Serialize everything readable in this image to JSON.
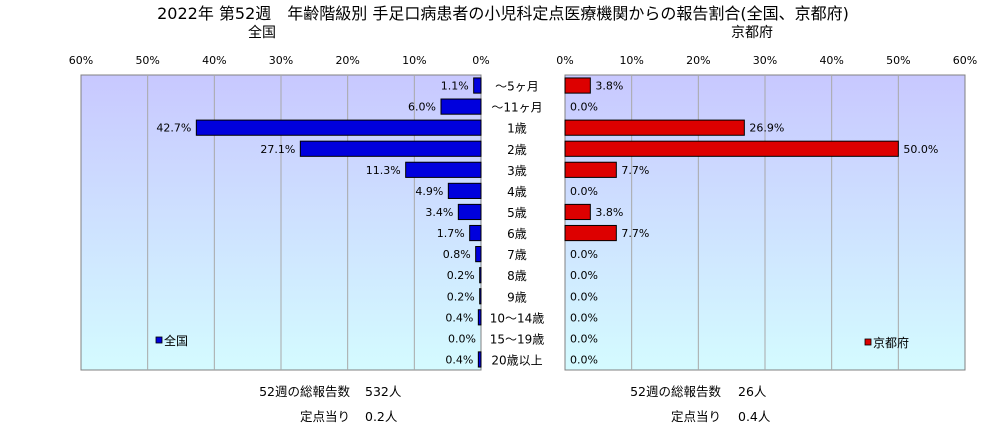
{
  "title": "2022年 第52週　年齢階級別 手足口病患者の小児科定点医療機関からの報告割合(全国、京都府)",
  "colors": {
    "plot_bg_top": "#c8c8ff",
    "plot_bg_bottom": "#d4fbff",
    "national_bar": "#0000dd",
    "kyoto_bar": "#dd0000",
    "grid": "#a8a8a8"
  },
  "chart_data": [
    {
      "type": "bar",
      "orientation": "horizontal",
      "direction": "right-to-left",
      "title": "全国",
      "legend": "全国",
      "legend_position": "bottom-left",
      "xlim": [
        0,
        60
      ],
      "ticks": [
        "60%",
        "50%",
        "40%",
        "30%",
        "20%",
        "10%",
        "0%"
      ],
      "grid": true,
      "categories": [
        "～5ヶ月",
        "～11ヶ月",
        "1歳",
        "2歳",
        "3歳",
        "4歳",
        "5歳",
        "6歳",
        "7歳",
        "8歳",
        "9歳",
        "10～14歳",
        "15～19歳",
        "20歳以上"
      ],
      "values": [
        1.1,
        6.0,
        42.7,
        27.1,
        11.3,
        4.9,
        3.4,
        1.7,
        0.8,
        0.2,
        0.2,
        0.4,
        0.0,
        0.4
      ],
      "labels": [
        "1.1%",
        "6.0%",
        "42.7%",
        "27.1%",
        "11.3%",
        "4.9%",
        "3.4%",
        "1.7%",
        "0.8%",
        "0.2%",
        "0.2%",
        "0.4%",
        "0.0%",
        "0.4%"
      ],
      "summary": {
        "total_label": "52週の総報告数",
        "total_value": "532人",
        "per_label": "定点当り",
        "per_value": "0.2人"
      }
    },
    {
      "type": "bar",
      "orientation": "horizontal",
      "direction": "left-to-right",
      "title": "京都府",
      "legend": "京都府",
      "legend_position": "bottom-right",
      "xlim": [
        0,
        60
      ],
      "ticks": [
        "0%",
        "10%",
        "20%",
        "30%",
        "40%",
        "50%",
        "60%"
      ],
      "grid": true,
      "categories": [
        "～5ヶ月",
        "～11ヶ月",
        "1歳",
        "2歳",
        "3歳",
        "4歳",
        "5歳",
        "6歳",
        "7歳",
        "8歳",
        "9歳",
        "10～14歳",
        "15～19歳",
        "20歳以上"
      ],
      "values": [
        3.8,
        0.0,
        26.9,
        50.0,
        7.7,
        0.0,
        3.8,
        7.7,
        0.0,
        0.0,
        0.0,
        0.0,
        0.0,
        0.0
      ],
      "labels": [
        "3.8%",
        "0.0%",
        "26.9%",
        "50.0%",
        "7.7%",
        "0.0%",
        "3.8%",
        "7.7%",
        "0.0%",
        "0.0%",
        "0.0%",
        "0.0%",
        "0.0%",
        "0.0%"
      ],
      "summary": {
        "total_label": "52週の総報告数",
        "total_value": "26人",
        "per_label": "定点当り",
        "per_value": "0.4人"
      }
    }
  ]
}
